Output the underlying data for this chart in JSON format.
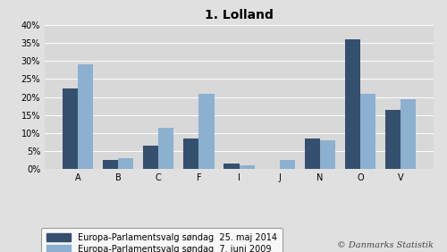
{
  "title": "1. Lolland",
  "categories": [
    "A",
    "B",
    "C",
    "F",
    "I",
    "J",
    "N",
    "O",
    "V"
  ],
  "values_2014": [
    22.5,
    2.5,
    6.5,
    8.5,
    1.5,
    0.0,
    8.5,
    36.0,
    16.5
  ],
  "values_2009": [
    29.0,
    3.0,
    11.5,
    21.0,
    1.0,
    2.5,
    8.0,
    21.0,
    19.5
  ],
  "color_2014": "#354f6e",
  "color_2009": "#8cb0d0",
  "ylim": [
    0,
    40
  ],
  "yticks": [
    0,
    5,
    10,
    15,
    20,
    25,
    30,
    35,
    40
  ],
  "ytick_labels": [
    "0%",
    "5%",
    "10%",
    "15%",
    "20%",
    "25%",
    "30%",
    "35%",
    "40%"
  ],
  "legend_2014": "Europa-Parlamentsvalg søndag  25. maj 2014",
  "legend_2009": "Europa-Parlamentsvalg søndag  7. juni 2009",
  "copyright": "© Danmarks Statistik",
  "background_color": "#e0e0e0",
  "plot_bg_color": "#d8d8d8",
  "title_fontsize": 10,
  "tick_fontsize": 7,
  "legend_fontsize": 7,
  "copyright_fontsize": 7
}
